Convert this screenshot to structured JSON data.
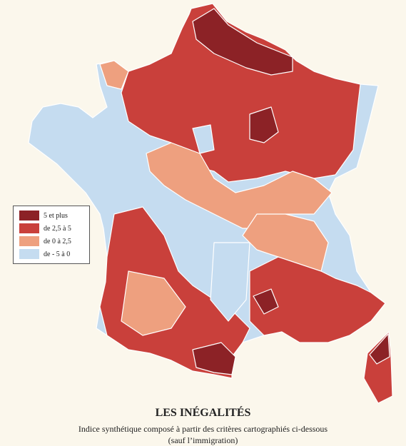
{
  "title": "LES INÉGALITÉS",
  "subtitle": [
    "Indice synthétique composé à partir des critères cartographiés ci-dessous",
    "(sauf l’immigration)"
  ],
  "legend": [
    {
      "label": "5 et plus",
      "color": "#8c2226"
    },
    {
      "label": "de 2,5 à 5",
      "color": "#c9403b"
    },
    {
      "label": "de 0 à 2,5",
      "color": "#eea07f"
    },
    {
      "label": "de - 5 à 0",
      "color": "#c5dcf0"
    }
  ]
}
